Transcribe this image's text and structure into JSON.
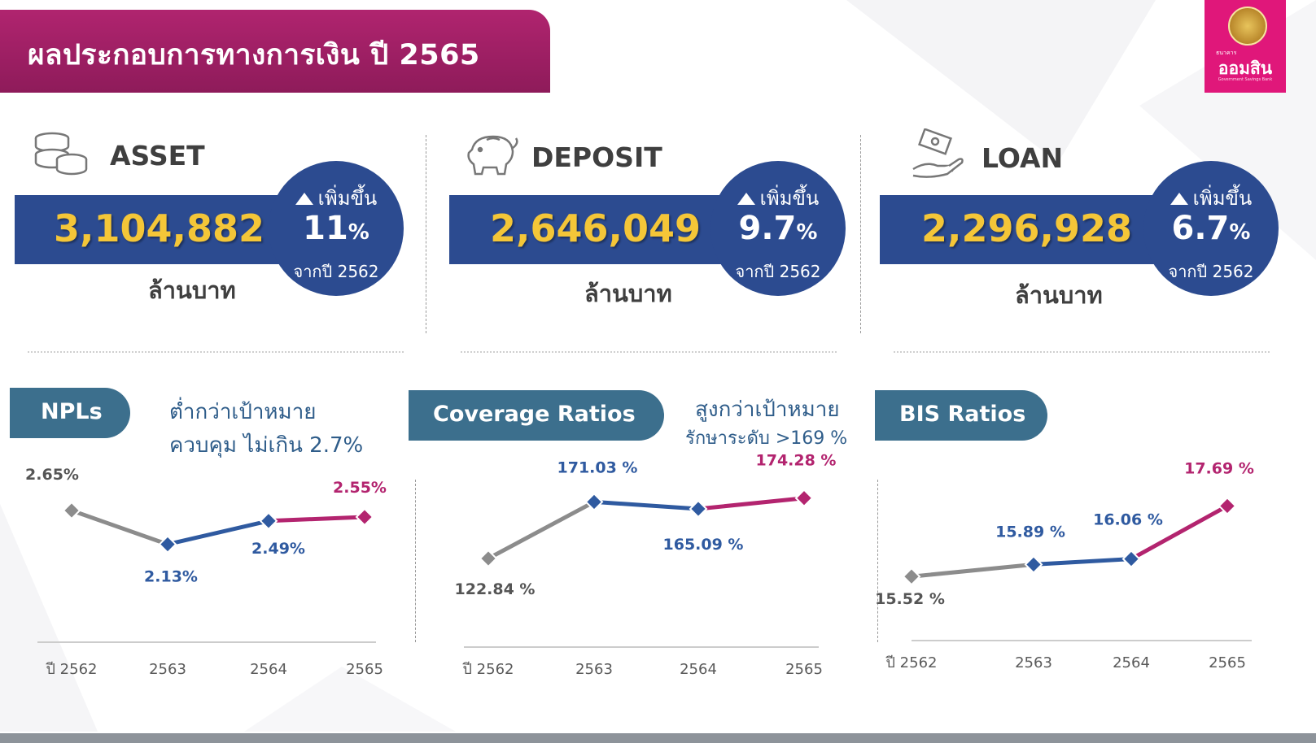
{
  "header": {
    "title": "ผลประกอบการทางการเงิน ปี 2565",
    "logo_small": "ธนาคาร",
    "logo_name": "ออมสิน",
    "logo_eng": "Government Savings Bank"
  },
  "metrics": [
    {
      "label": "ASSET",
      "icon": "coins-icon",
      "value": "3,104,882",
      "increase": "เพิ่มขึ้น",
      "pct": "11",
      "pct_sign": "%",
      "from": "จากปี 2562",
      "unit": "ล้านบาท"
    },
    {
      "label": "DEPOSIT",
      "icon": "piggy-bank-icon",
      "value": "2,646,049",
      "increase": "เพิ่มขึ้น",
      "pct": "9.7",
      "pct_sign": "%",
      "from": "จากปี 2562",
      "unit": "ล้านบาท"
    },
    {
      "label": "LOAN",
      "icon": "hand-money-icon",
      "value": "2,296,928",
      "increase": "เพิ่มขึ้น",
      "pct": "6.7",
      "pct_sign": "%",
      "from": "จากปี 2562",
      "unit": "ล้านบาท"
    }
  ],
  "sections": [
    {
      "tab": "NPLs",
      "note1": "ต่ำกว่าเป้าหมาย",
      "note2": "ควบคุม ไม่เกิน 2.7%"
    },
    {
      "tab": "Coverage Ratios",
      "note1": "สูงกว่าเป้าหมาย",
      "note2": "รักษาระดับ >169 %"
    },
    {
      "tab": "BIS Ratios",
      "note1": "",
      "note2": ""
    }
  ],
  "colors": {
    "grey": "#8c8c8c",
    "blue": "#2f5aa0",
    "magenta": "#b3246f",
    "band": "#2c4b90",
    "gold": "#f4c638"
  },
  "chart_data": [
    {
      "type": "line",
      "title": "NPLs",
      "categories": [
        "ปี 2562",
        "2563",
        "2564",
        "2565"
      ],
      "values": [
        2.65,
        2.13,
        2.49,
        2.55
      ],
      "labels": [
        "2.65%",
        "2.13%",
        "2.49%",
        "2.55%"
      ],
      "ylim": [
        1.5,
        3.0
      ],
      "grid": false
    },
    {
      "type": "line",
      "title": "Coverage Ratios",
      "categories": [
        "ปี 2562",
        "2563",
        "2564",
        "2565"
      ],
      "values": [
        122.84,
        171.03,
        165.09,
        174.28
      ],
      "labels": [
        "122.84 %",
        "171.03 %",
        "165.09 %",
        "174.28 %"
      ],
      "ylim": [
        100,
        190
      ],
      "grid": false
    },
    {
      "type": "line",
      "title": "BIS Ratios",
      "categories": [
        "ปี 2562",
        "2563",
        "2564",
        "2565"
      ],
      "values": [
        15.52,
        15.89,
        16.06,
        17.69
      ],
      "labels": [
        "15.52 %",
        "15.89 %",
        "16.06 %",
        "17.69 %"
      ],
      "ylim": [
        14.5,
        18.5
      ],
      "grid": false
    }
  ]
}
